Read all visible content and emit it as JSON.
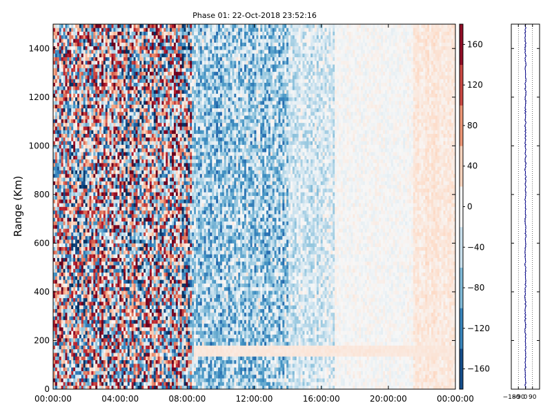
{
  "chart_data": [
    {
      "type": "heatmap",
      "title": "Phase 01: 22-Oct-2018 23:52:16",
      "xlabel": "",
      "ylabel": "Range (Km)",
      "x_ticks": [
        "00:00:00",
        "04:00:00",
        "08:00:00",
        "12:00:00",
        "16:00:00",
        "20:00:00",
        "00:00:00"
      ],
      "x_tick_hours": [
        0,
        4,
        8,
        12,
        16,
        20,
        24
      ],
      "xlim_hours": [
        0,
        24
      ],
      "y_ticks": [
        0,
        200,
        400,
        600,
        800,
        1000,
        1200,
        1400
      ],
      "ylim": [
        0,
        1500
      ],
      "colormap": "RdBu_r",
      "colorbar_range": [
        -180,
        180
      ],
      "colorbar_ticks": [
        "160",
        "120",
        "80",
        "40",
        "0",
        "−40",
        "−80",
        "−120",
        "−160"
      ],
      "colorbar_tick_values": [
        160,
        120,
        80,
        40,
        0,
        -40,
        -80,
        -120,
        -160
      ],
      "grid": false,
      "phase_profile_by_time": [
        {
          "hours": [
            0,
            8.3
          ],
          "phase_mean": 0,
          "spread": 180,
          "pattern": "random full-range noise (red and blue)"
        },
        {
          "hours": [
            8.3,
            14
          ],
          "phase_mean": -60,
          "spread": 70,
          "pattern": "mostly blue"
        },
        {
          "hours": [
            14,
            16.8
          ],
          "phase_mean": -30,
          "spread": 40,
          "pattern": "light blue"
        },
        {
          "hours": [
            16.8,
            21.5
          ],
          "phase_mean": 0,
          "spread": 15,
          "pattern": "near white"
        },
        {
          "hours": [
            21.5,
            24
          ],
          "phase_mean": 20,
          "spread": 15,
          "pattern": "light red"
        }
      ],
      "features": [
        {
          "hours": [
            8.3,
            24
          ],
          "range_km": [
            140,
            170
          ],
          "phase": 20,
          "description": "thin light band"
        }
      ]
    },
    {
      "type": "line",
      "title": "",
      "xlabel": "",
      "ylabel": "",
      "x_ticks": [
        "−180",
        "−90",
        "0",
        "90"
      ],
      "x_tick_values": [
        -180,
        -90,
        0,
        90
      ],
      "xlim": [
        -180,
        180
      ],
      "ylim": [
        0,
        1500
      ],
      "grid": "vertical dotted",
      "series": [
        {
          "color": "#00008b",
          "mean_phase": 0,
          "range_km": [
            0,
            1500
          ]
        }
      ]
    }
  ]
}
